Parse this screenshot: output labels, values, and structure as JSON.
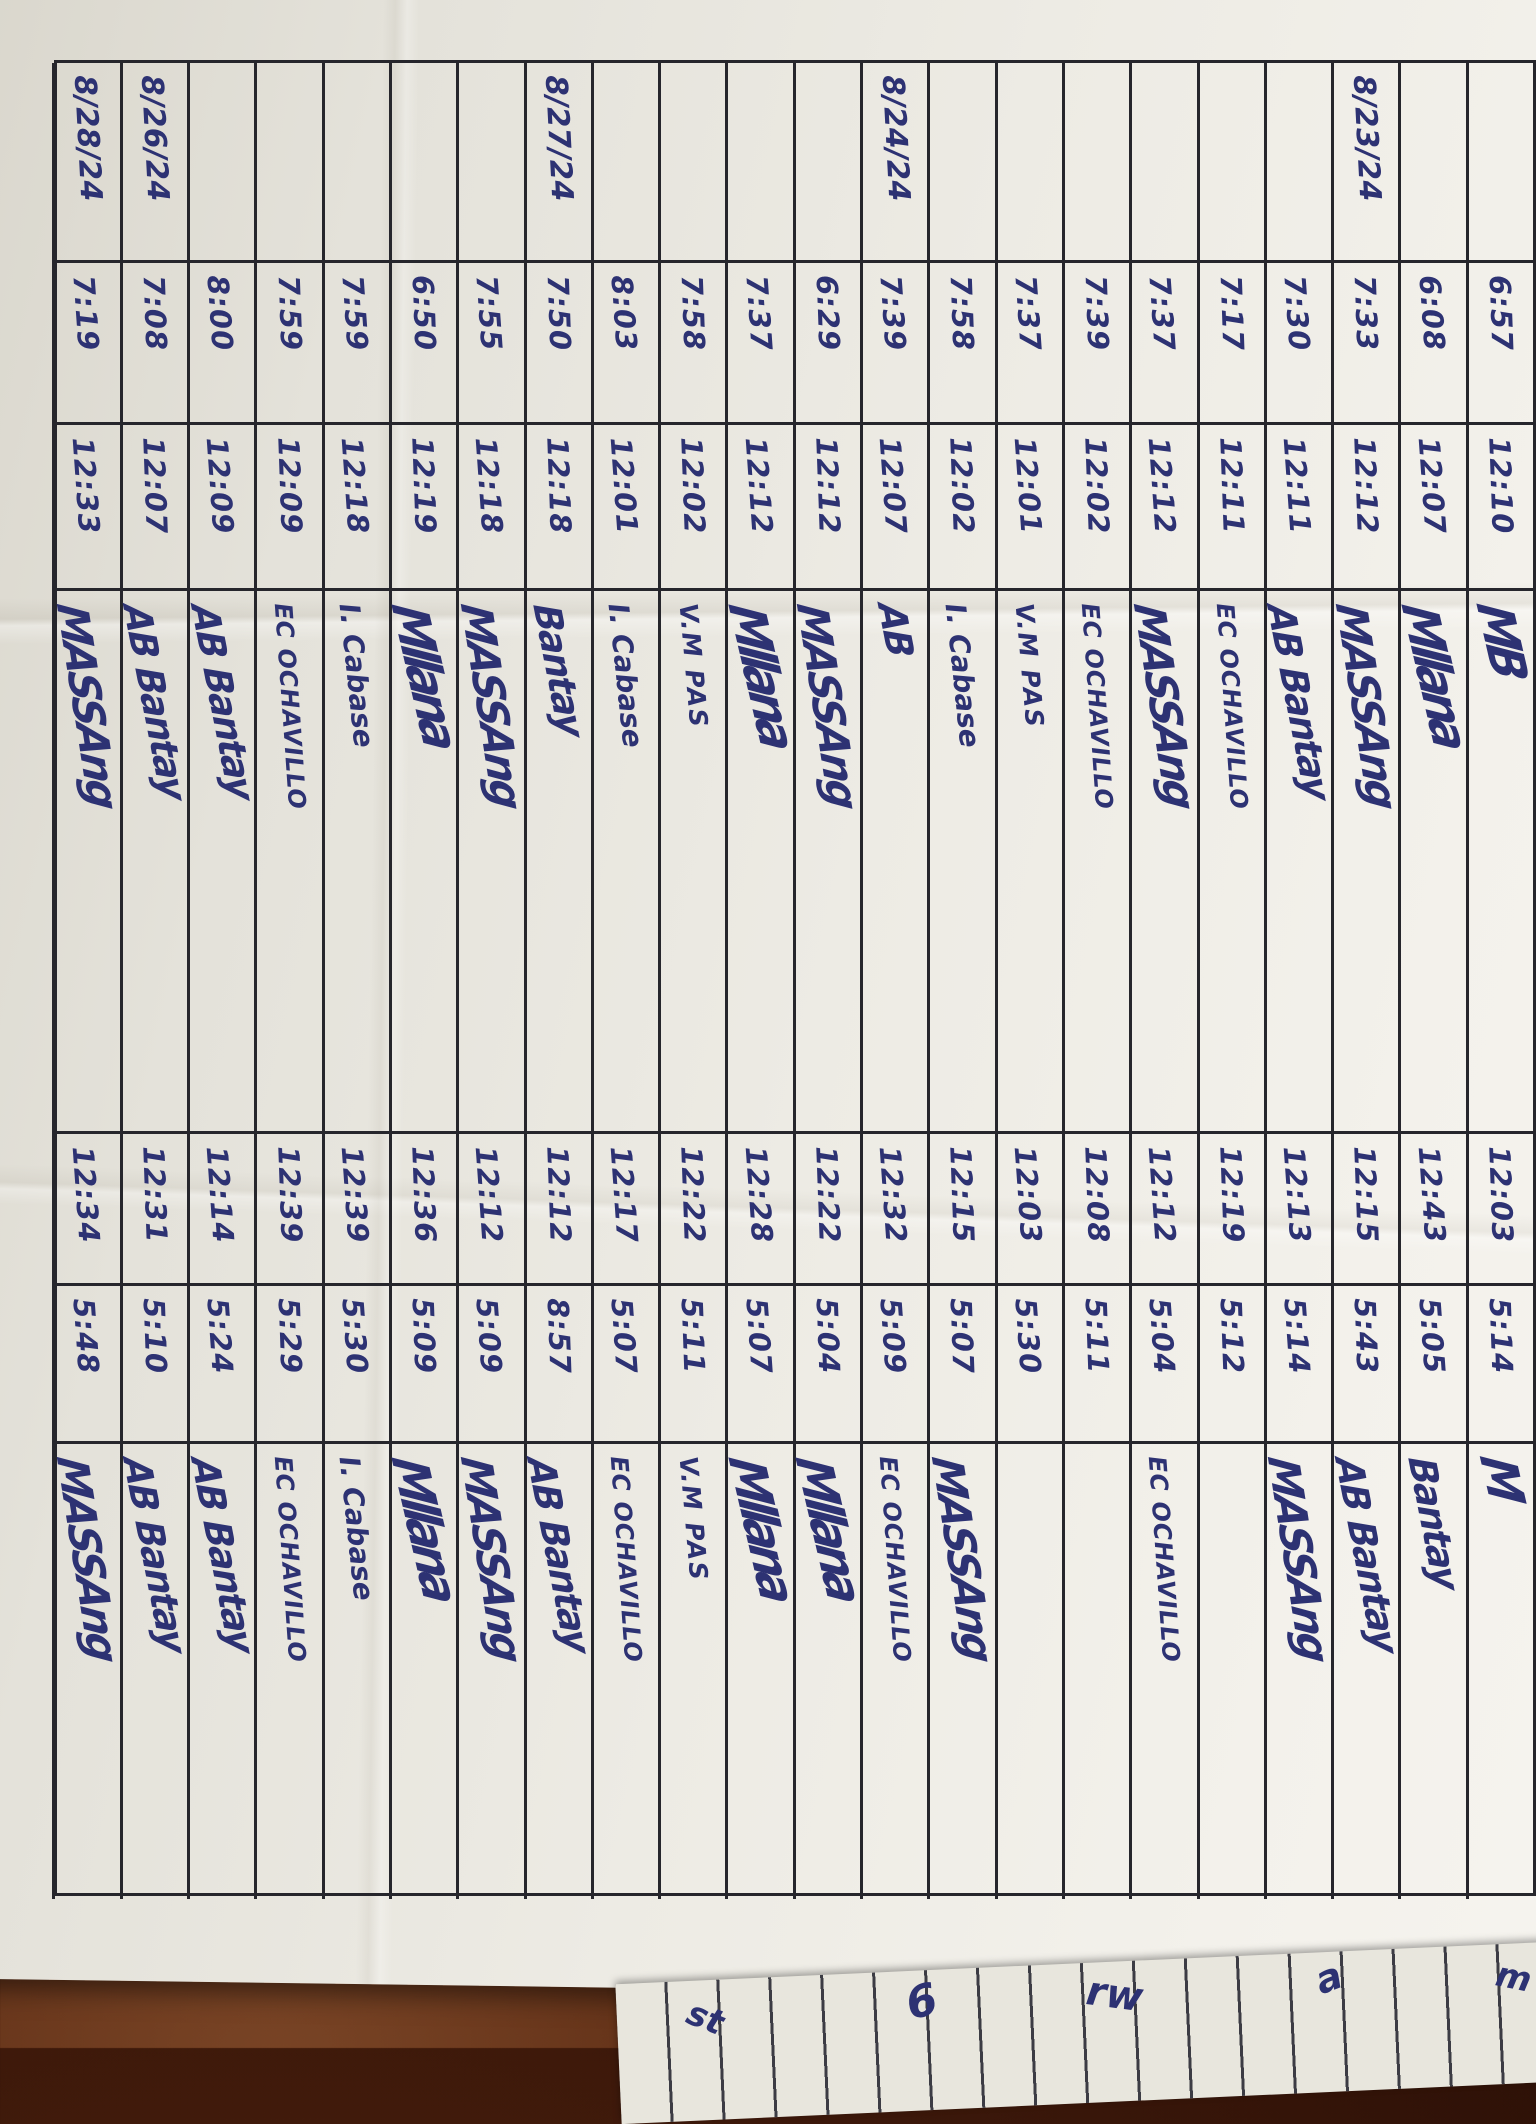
{
  "document": {
    "kind": "handwritten attendance sign-in sheet (photo, table rotated 90 degrees clockwise)",
    "columns": [
      "date",
      "am_time_in",
      "am_time_out",
      "am_name_signature",
      "pm_time_in",
      "pm_time_out",
      "pm_name_signature"
    ]
  },
  "colors": {
    "ink": "#2d3273",
    "grid_line": "#26262c",
    "paper": "#edebe4",
    "desk": "#54250f"
  },
  "rows": [
    {
      "date": "",
      "am_in": "6:57",
      "am_out": "12:10",
      "name1": "MB",
      "pm_in": "12:03",
      "pm_out": "5:14",
      "name2": "M"
    },
    {
      "date": "",
      "am_in": "6:08",
      "am_out": "12:07",
      "name1": "Mllana",
      "pm_in": "12:43",
      "pm_out": "5:05",
      "name2": "Bantay"
    },
    {
      "date": "8/23/24",
      "am_in": "7:33",
      "am_out": "12:12",
      "name1": "MASSAng",
      "pm_in": "12:15",
      "pm_out": "5:43",
      "name2": "AB Bantay"
    },
    {
      "date": "",
      "am_in": "7:30",
      "am_out": "12:11",
      "name1": "AB Bantay",
      "pm_in": "12:13",
      "pm_out": "5:14",
      "name2": "MASSAng"
    },
    {
      "date": "",
      "am_in": "7:17",
      "am_out": "12:11",
      "name1": "EC OCHAVILLO",
      "pm_in": "12:19",
      "pm_out": "5:12",
      "name2": ""
    },
    {
      "date": "",
      "am_in": "7:37",
      "am_out": "12:12",
      "name1": "MASSAng",
      "pm_in": "12:12",
      "pm_out": "5:04",
      "name2": "EC OCHAVILLO"
    },
    {
      "date": "",
      "am_in": "7:39",
      "am_out": "12:02",
      "name1": "EC OCHAVILLO",
      "pm_in": "12:08",
      "pm_out": "5:11",
      "name2": ""
    },
    {
      "date": "",
      "am_in": "7:37",
      "am_out": "12:01",
      "name1": "V.M PAS",
      "pm_in": "12:03",
      "pm_out": "5:30",
      "name2": ""
    },
    {
      "date": "",
      "am_in": "7:58",
      "am_out": "12:02",
      "name1": "I. Cabase",
      "pm_in": "12:15",
      "pm_out": "5:07",
      "name2": "MASSAng"
    },
    {
      "date": "8/24/24",
      "am_in": "7:39",
      "am_out": "12:07",
      "name1": "AB",
      "pm_in": "12:32",
      "pm_out": "5:09",
      "name2": "EC OCHAVILLO"
    },
    {
      "date": "",
      "am_in": "6:29",
      "am_out": "12:12",
      "name1": "MASSAng",
      "pm_in": "12:22",
      "pm_out": "5:04",
      "name2": "Mllana"
    },
    {
      "date": "",
      "am_in": "7:37",
      "am_out": "12:12",
      "name1": "Mllana",
      "pm_in": "12:28",
      "pm_out": "5:07",
      "name2": "Mllana"
    },
    {
      "date": "",
      "am_in": "7:58",
      "am_out": "12:02",
      "name1": "V.M PAS",
      "pm_in": "12:22",
      "pm_out": "5:11",
      "name2": "V.M PAS"
    },
    {
      "date": "",
      "am_in": "8:03",
      "am_out": "12:01",
      "name1": "I. Cabase",
      "pm_in": "12:17",
      "pm_out": "5:07",
      "name2": "EC OCHAVILLO"
    },
    {
      "date": "8/27/24",
      "am_in": "7:50",
      "am_out": "12:18",
      "name1": "Bantay",
      "pm_in": "12:12",
      "pm_out": "8:57",
      "name2": "AB Bantay"
    },
    {
      "date": "",
      "am_in": "7:55",
      "am_out": "12:18",
      "name1": "MASSAng",
      "pm_in": "12:12",
      "pm_out": "5:09",
      "name2": "MASSAng"
    },
    {
      "date": "",
      "am_in": "6:50",
      "am_out": "12:19",
      "name1": "Mllana",
      "pm_in": "12:36",
      "pm_out": "5:09",
      "name2": "Mllana"
    },
    {
      "date": "",
      "am_in": "7:59",
      "am_out": "12:18",
      "name1": "I. Cabase",
      "pm_in": "12:39",
      "pm_out": "5:30",
      "name2": "I. Cabase"
    },
    {
      "date": "",
      "am_in": "7:59",
      "am_out": "12:09",
      "name1": "EC OCHAVILLO",
      "pm_in": "12:39",
      "pm_out": "5:29",
      "name2": "EC OCHAVILLO"
    },
    {
      "date": "",
      "am_in": "8:00",
      "am_out": "12:09",
      "name1": "AB Bantay",
      "pm_in": "12:14",
      "pm_out": "5:24",
      "name2": "AB Bantay"
    },
    {
      "date": "8/26/24",
      "am_in": "7:08",
      "am_out": "12:07",
      "name1": "AB Bantay",
      "pm_in": "12:31",
      "pm_out": "5:10",
      "name2": "AB Bantay"
    },
    {
      "date": "8/28/24",
      "am_in": "7:19",
      "am_out": "12:33",
      "name1": "MASSAng",
      "pm_in": "12:34",
      "pm_out": "5:48",
      "name2": "MASSAng"
    }
  ],
  "bottom_sheet": {
    "scribbles": [
      "st",
      "6",
      "rw",
      "a",
      "m"
    ]
  }
}
